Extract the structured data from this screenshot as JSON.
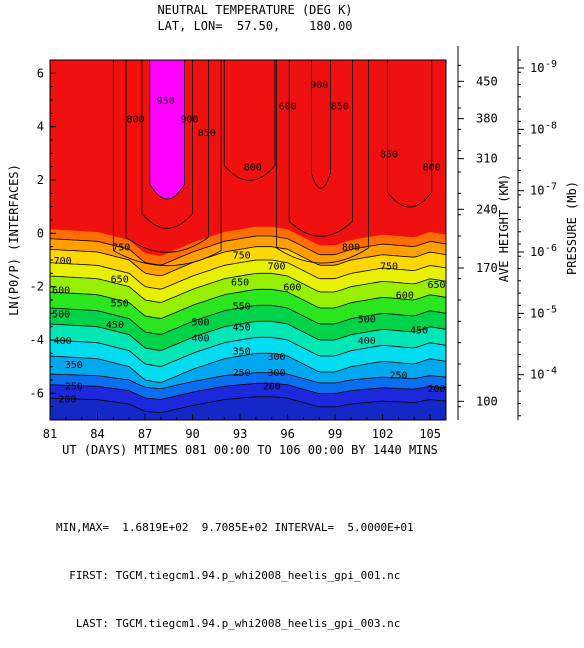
{
  "chart_data": {
    "type": "contour",
    "title": "NEUTRAL TEMPERATURE (DEG K)",
    "subtitle": "LAT, LON=  57.50,    180.00",
    "xlabel": "UT (DAYS) MTIMES 081 00:00 TO 106 00:00 BY 1440 MINS",
    "ylabel": "LN(P0/P) (INTERFACES)",
    "right_label_height": "AVE HEIGHT (KM)",
    "right_label_pressure": "PRESSURE (Mb)",
    "xlim": [
      81,
      106
    ],
    "ylim": [
      -7,
      6.5
    ],
    "x_ticks": [
      "81",
      "84",
      "87",
      "90",
      "93",
      "96",
      "99",
      "102",
      "105"
    ],
    "y_ticks": [
      "-6",
      "-4",
      "-2",
      "0",
      "2",
      "4",
      "6"
    ],
    "height_ticks": [
      {
        "label": "100",
        "y": -6.3
      },
      {
        "label": "170",
        "y": -1.3
      },
      {
        "label": "240",
        "y": 0.9
      },
      {
        "label": "310",
        "y": 2.8
      },
      {
        "label": "380",
        "y": 4.3
      },
      {
        "label": "450",
        "y": 5.7
      }
    ],
    "pressure_ticks": [
      {
        "label": "10",
        "exp": "-9",
        "y": 6.2
      },
      {
        "label": "10",
        "exp": "-8",
        "y": 3.9
      },
      {
        "label": "10",
        "exp": "-7",
        "y": 1.6
      },
      {
        "label": "10",
        "exp": "-6",
        "y": -0.7
      },
      {
        "label": "10",
        "exp": "-5",
        "y": -3.0
      },
      {
        "label": "10",
        "exp": "-4",
        "y": -5.3
      }
    ],
    "levels": [
      200,
      250,
      300,
      350,
      400,
      450,
      500,
      550,
      600,
      650,
      700,
      750,
      800,
      850,
      900,
      950
    ],
    "level_colors": [
      "#1c28dc",
      "#0a6ef0",
      "#00a8f0",
      "#00dcf0",
      "#00e6b4",
      "#00d24a",
      "#2ae61e",
      "#96f000",
      "#e6f000",
      "#ffd700",
      "#ffa000",
      "#ff6e00",
      "#ff2a00",
      "#ff0000",
      "#ff0000",
      "#ff0000"
    ],
    "band_colors": {
      "below_200": "#1428c8",
      "above_800": "#f01010",
      "above_900": "#dc00c8",
      "above_950": "#ff00ff"
    },
    "isotherm_profile": {
      "x": [
        81,
        84,
        86,
        87,
        88,
        90,
        92,
        94,
        95,
        96,
        98,
        99,
        100,
        102,
        104,
        105,
        106
      ],
      "shift": [
        0.4,
        0.3,
        0.0,
        -0.5,
        -0.6,
        -0.1,
        0.3,
        0.5,
        0.5,
        0.4,
        -0.2,
        -0.2,
        0.0,
        0.2,
        0.1,
        0.3,
        0.2
      ]
    },
    "isotherm_base": {
      "200": -6.4,
      "250": -5.9,
      "300": -5.5,
      "350": -5.0,
      "400": -4.4,
      "450": -3.8,
      "500": -3.2,
      "550": -2.6,
      "600": -2.0,
      "650": -1.5,
      "700": -1.0,
      "750": -0.6
    },
    "contour_labels": [
      {
        "text": "200",
        "x": 82.1,
        "y": -6.2
      },
      {
        "text": "250",
        "x": 82.5,
        "y": -5.7
      },
      {
        "text": "300",
        "x": 95.3,
        "y": -5.2
      },
      {
        "text": "350",
        "x": 82.5,
        "y": -4.9
      },
      {
        "text": "400",
        "x": 81.8,
        "y": -4.0
      },
      {
        "text": "450",
        "x": 85.1,
        "y": -3.4
      },
      {
        "text": "500",
        "x": 81.7,
        "y": -3.0
      },
      {
        "text": "550",
        "x": 85.4,
        "y": -2.6
      },
      {
        "text": "600",
        "x": 81.7,
        "y": -2.1
      },
      {
        "text": "650",
        "x": 85.4,
        "y": -1.7
      },
      {
        "text": "700",
        "x": 81.8,
        "y": -1.0
      },
      {
        "text": "750",
        "x": 85.5,
        "y": -0.5
      },
      {
        "text": "200",
        "x": 95.0,
        "y": -5.7
      },
      {
        "text": "250",
        "x": 93.1,
        "y": -5.2
      },
      {
        "text": "300",
        "x": 95.3,
        "y": -4.6
      },
      {
        "text": "350",
        "x": 93.1,
        "y": -4.4
      },
      {
        "text": "400",
        "x": 90.5,
        "y": -3.9
      },
      {
        "text": "450",
        "x": 93.1,
        "y": -3.5
      },
      {
        "text": "500",
        "x": 90.5,
        "y": -3.3
      },
      {
        "text": "550",
        "x": 93.1,
        "y": -2.7
      },
      {
        "text": "600",
        "x": 96.3,
        "y": -2.0
      },
      {
        "text": "650",
        "x": 93.0,
        "y": -1.8
      },
      {
        "text": "700",
        "x": 95.3,
        "y": -1.2
      },
      {
        "text": "750",
        "x": 93.1,
        "y": -0.8
      },
      {
        "text": "500",
        "x": 101.0,
        "y": -3.2
      },
      {
        "text": "400",
        "x": 101.0,
        "y": -4.0
      },
      {
        "text": "450",
        "x": 104.3,
        "y": -3.6
      },
      {
        "text": "250",
        "x": 103.0,
        "y": -5.3
      },
      {
        "text": "200",
        "x": 105.4,
        "y": -5.8
      },
      {
        "text": "600",
        "x": 103.4,
        "y": -2.3
      },
      {
        "text": "650",
        "x": 105.4,
        "y": -1.9
      },
      {
        "text": "750",
        "x": 102.4,
        "y": -1.2
      },
      {
        "text": "800",
        "x": 100.0,
        "y": -0.5
      },
      {
        "text": "800",
        "x": 86.4,
        "y": 4.3
      },
      {
        "text": "850",
        "x": 90.9,
        "y": 3.8
      },
      {
        "text": "900",
        "x": 89.8,
        "y": 4.3
      },
      {
        "text": "950",
        "x": 88.3,
        "y": 5.0
      },
      {
        "text": "800",
        "x": 93.8,
        "y": 2.5
      },
      {
        "text": "600",
        "x": 96.0,
        "y": 4.8
      },
      {
        "text": "900",
        "x": 98.0,
        "y": 5.6
      },
      {
        "text": "850",
        "x": 99.3,
        "y": 4.8
      },
      {
        "text": "850",
        "x": 102.4,
        "y": 3.0
      },
      {
        "text": "800",
        "x": 105.1,
        "y": 2.5
      }
    ],
    "footer": [
      "MIN,MAX=  1.6819E+02  9.7085E+02 INTERVAL=  5.0000E+01",
      "  FIRST: TGCM.tiegcm1.94.p_whi2008_heelis_gpi_001.nc",
      "   LAST: TGCM.tiegcm1.94.p_whi2008_heelis_gpi_003.nc"
    ]
  }
}
